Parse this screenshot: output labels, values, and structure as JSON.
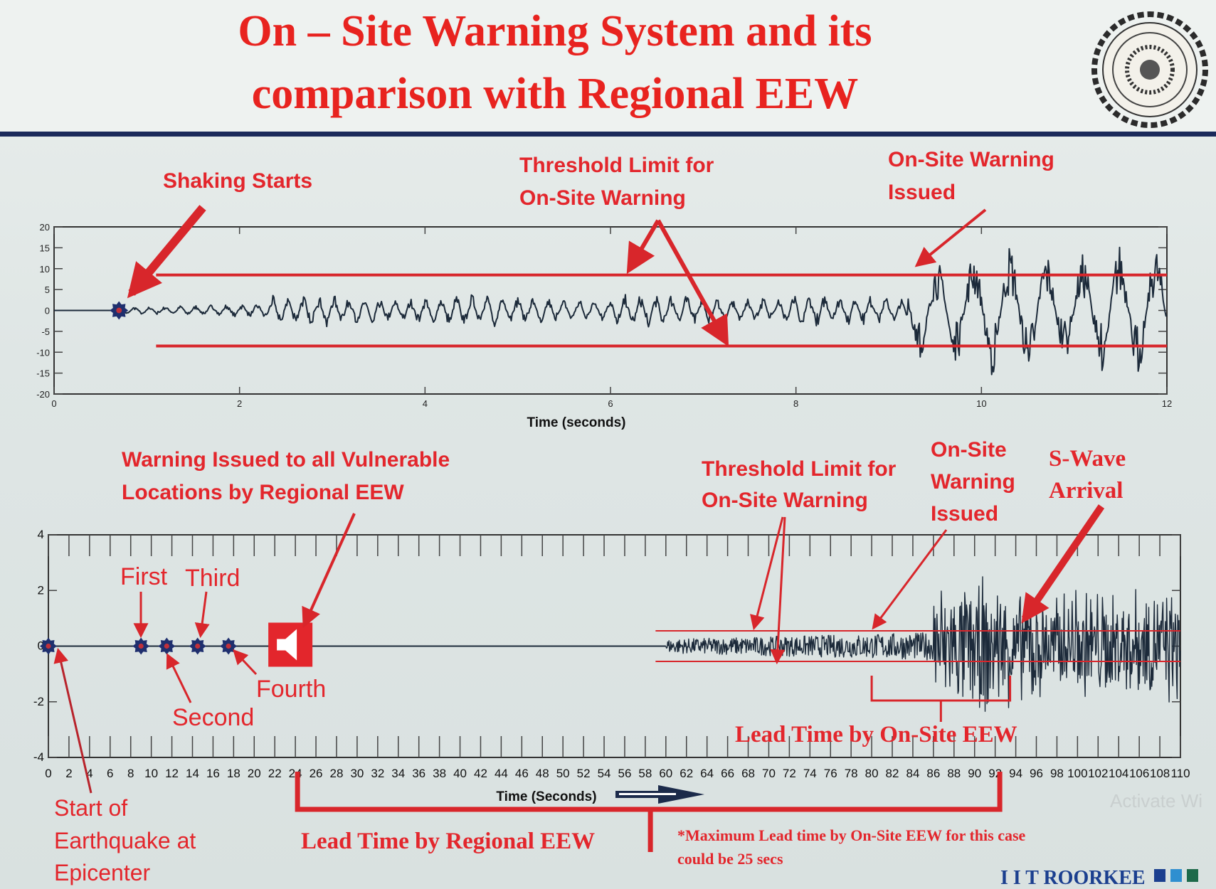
{
  "slide": {
    "title_line1": "On – Site Warning System and its",
    "title_line2": "comparison with Regional EEW",
    "brand": "I I T ROORKEE",
    "logo": "iit-roorkee-seal",
    "watermark": "Activate Wi",
    "colors": {
      "accent_red": "#e3262c",
      "trace": "#1c2a3a",
      "header_rule": "#1b2a5a",
      "brand_blue": "#1b3f8f"
    }
  },
  "annotations_top": {
    "shaking_starts": "Shaking Starts",
    "threshold_1": "Threshold Limit for",
    "threshold_2": "On-Site Warning",
    "onsite_1": "On-Site Warning",
    "onsite_2": "Issued"
  },
  "annotations_bottom": {
    "regional_1": "Warning Issued to all Vulnerable",
    "regional_2": "Locations by Regional EEW",
    "first": "First",
    "second": "Second",
    "third": "Third",
    "fourth": "Fourth",
    "threshold_1": "Threshold Limit for",
    "threshold_2": "On-Site Warning",
    "onsite_1": "On-Site",
    "onsite_2": "Warning",
    "onsite_3": "Issued",
    "swave_1": "S-Wave",
    "swave_2": "Arrival",
    "lead_onsite": "Lead Time by On-Site EEW",
    "start_1": "Start of",
    "start_2": "Earthquake at",
    "start_3": "Epicenter",
    "lead_regional": "Lead Time by Regional EEW",
    "footnote_1": "*Maximum Lead time by On-Site EEW for this case",
    "footnote_2": "could be 25 secs"
  },
  "chart_data": [
    {
      "type": "line",
      "title": "",
      "xlabel": "Time (seconds)",
      "ylabel": "",
      "xlim": [
        0,
        12
      ],
      "ylim": [
        -20,
        20
      ],
      "xticks": [
        "0",
        "2",
        "4",
        "6",
        "8",
        "10",
        "12"
      ],
      "yticks": [
        "20",
        "15",
        "10",
        "5",
        "0",
        "-5",
        "-10",
        "-15",
        "-20"
      ],
      "threshold_upper": 8.5,
      "threshold_lower": -8.5,
      "threshold_start": 1.1,
      "shaking_start": 0.7,
      "onsite_warning_time": 9.2,
      "grid": false
    },
    {
      "type": "line",
      "title": "",
      "xlabel": "Time (Seconds)",
      "ylabel": "",
      "xlim": [
        0,
        110
      ],
      "ylim": [
        -4,
        4
      ],
      "xticks": [
        "0",
        "2",
        "4",
        "6",
        "8",
        "10",
        "12",
        "14",
        "16",
        "18",
        "20",
        "22",
        "24",
        "26",
        "28",
        "30",
        "32",
        "34",
        "36",
        "38",
        "40",
        "42",
        "44",
        "46",
        "48",
        "50",
        "52",
        "54",
        "56",
        "58",
        "60",
        "62",
        "64",
        "66",
        "68",
        "70",
        "72",
        "74",
        "76",
        "78",
        "80",
        "82",
        "84",
        "86",
        "88",
        "90",
        "92",
        "94",
        "96",
        "98",
        "100",
        "102",
        "104",
        "106",
        "108",
        "110"
      ],
      "yticks": [
        "4",
        "2",
        "0",
        "-2",
        "-4"
      ],
      "threshold_upper": 0.55,
      "threshold_lower": -0.55,
      "threshold_start": 59,
      "station_events": [
        0,
        9,
        11.5,
        14.5,
        17.5
      ],
      "regional_warning_time": 24,
      "onsite_warning_time": 81,
      "s_wave_arrival": 94,
      "lead_time_regional": [
        24,
        93
      ],
      "lead_time_onsite": [
        80,
        94
      ],
      "grid": false
    }
  ]
}
